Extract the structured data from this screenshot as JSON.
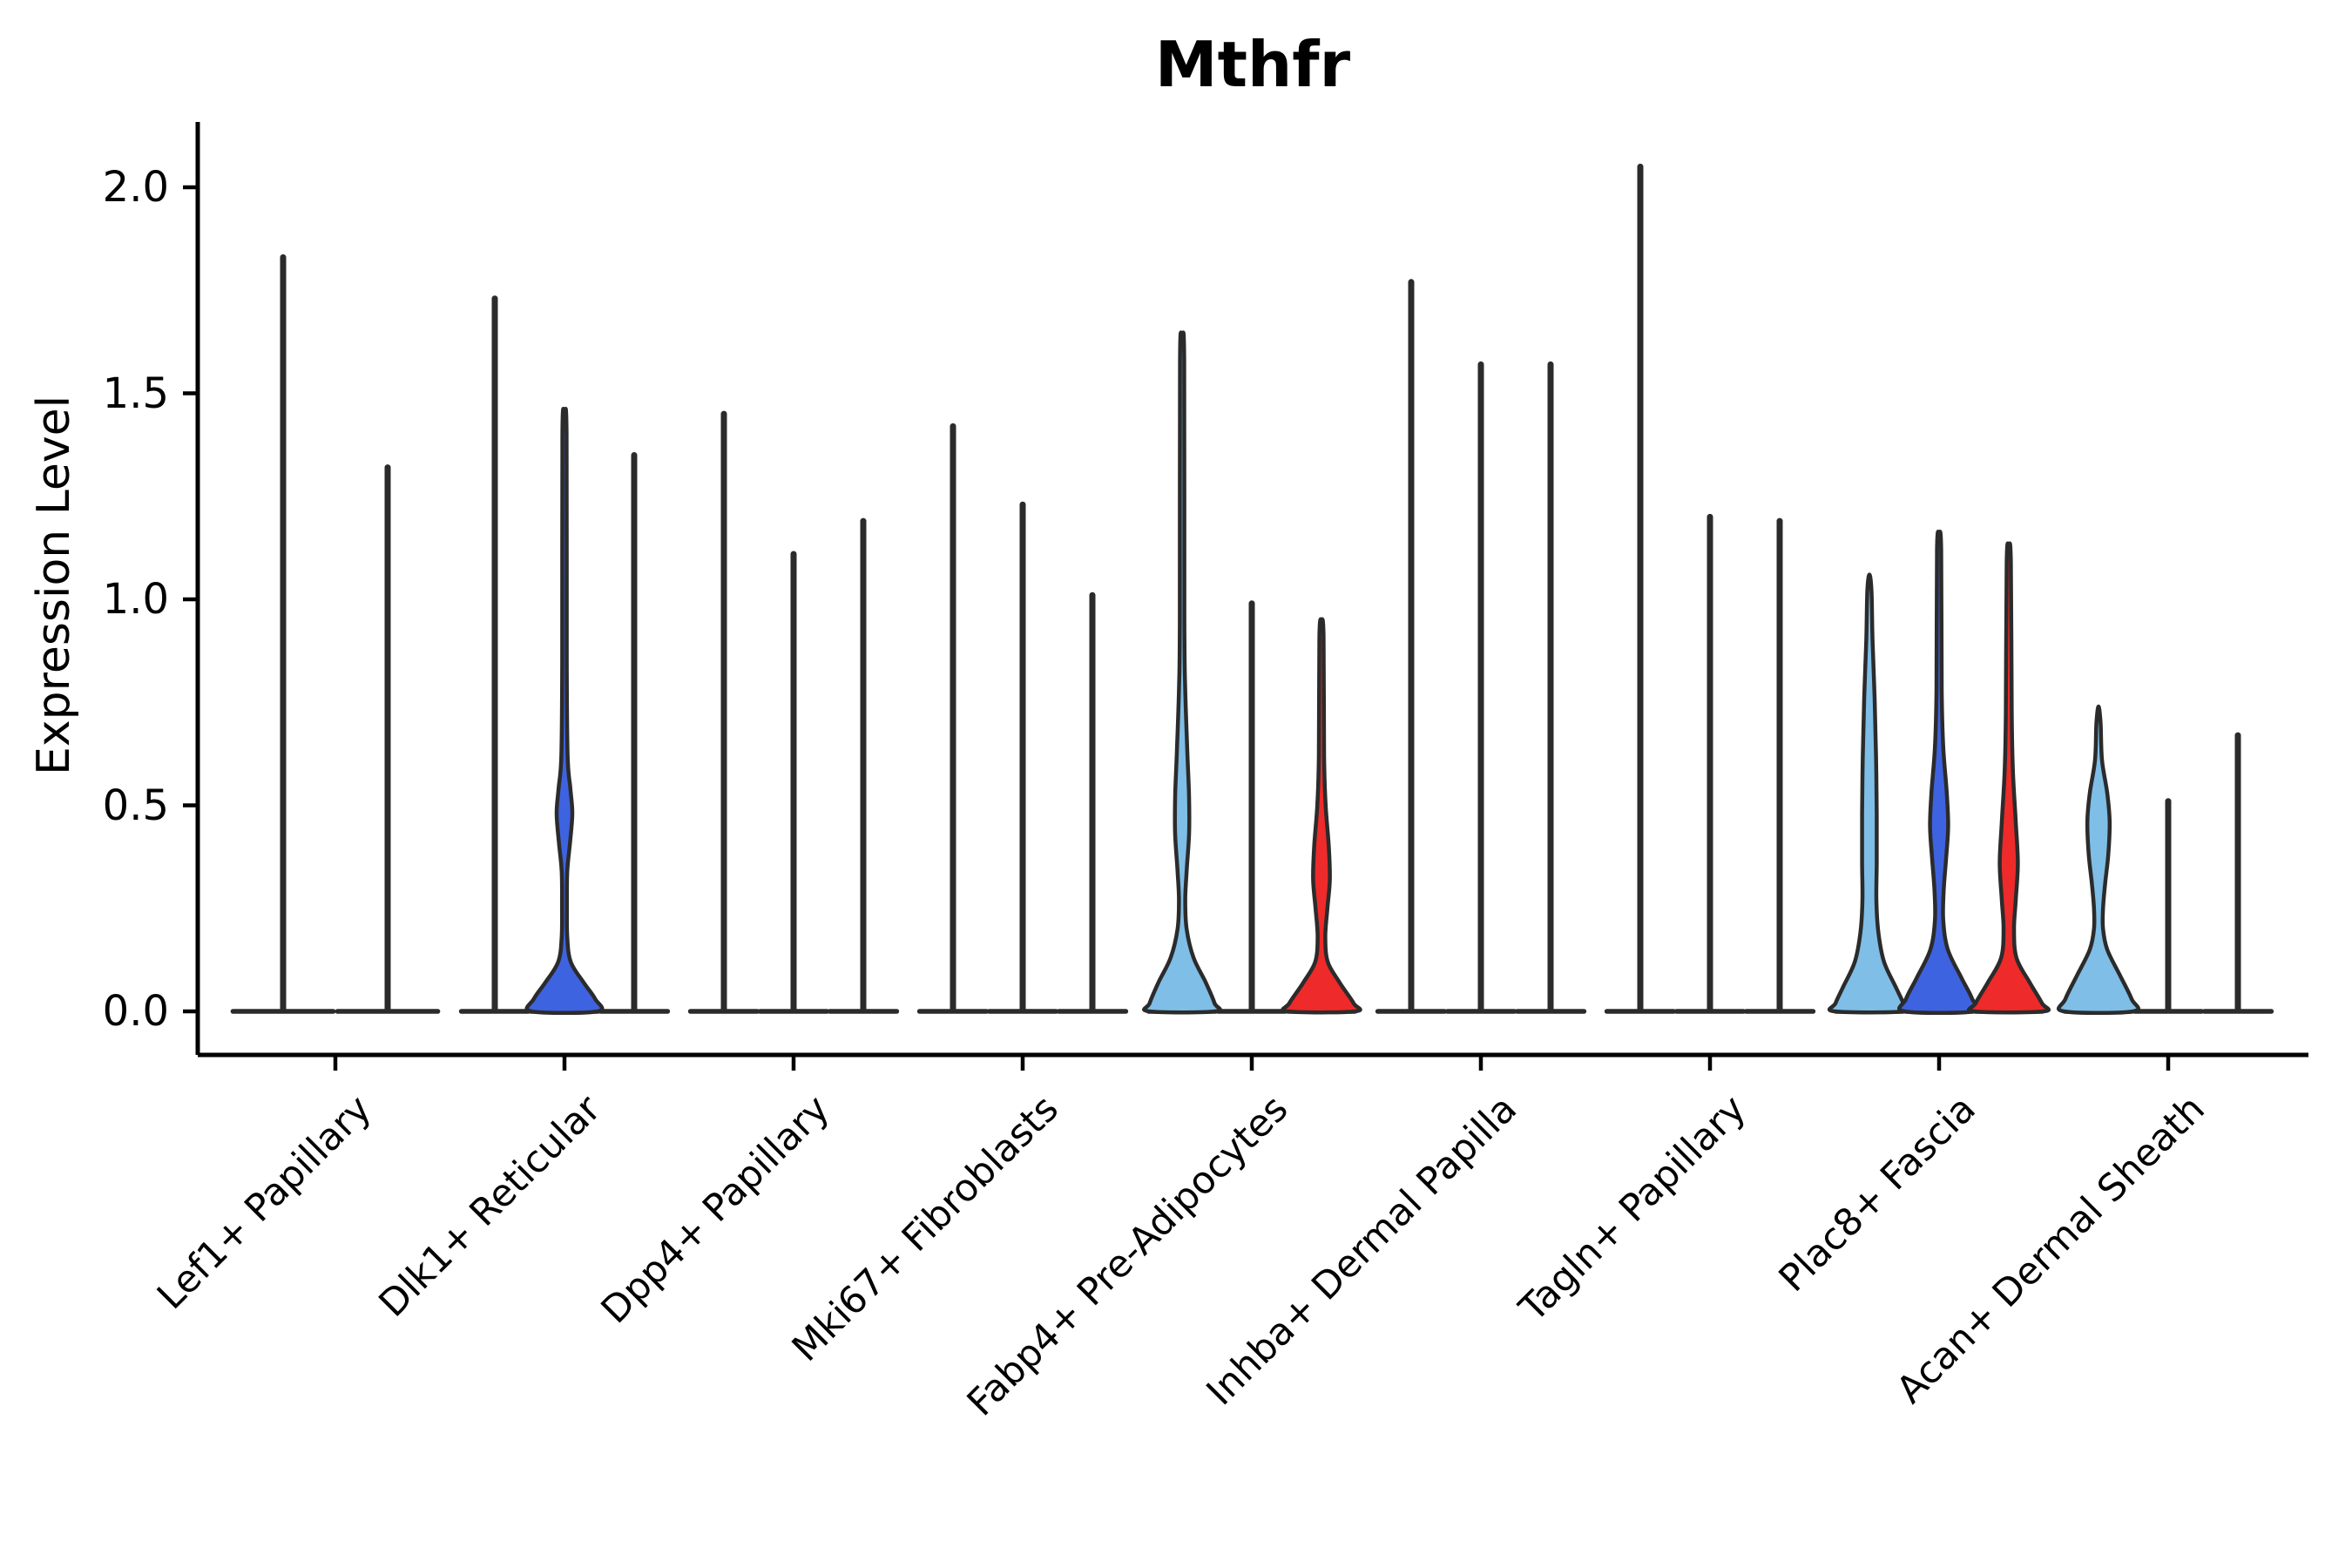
{
  "title": "Mthfr",
  "y_axis": {
    "label": "Expression Level",
    "tick_labels": [
      "0.0",
      "0.5",
      "1.0",
      "1.5",
      "2.0"
    ],
    "tick_values": [
      0.0,
      0.5,
      1.0,
      1.5,
      2.0
    ]
  },
  "x_axis": {
    "categories": [
      "Lef1+ Papillary",
      "Dlk1+ Reticular",
      "Dpp4+ Papillary",
      "Mki67+ Fibroblasts",
      "Fabp4+ Pre-Adipocytes",
      "Inhba+ Dermal Papilla",
      "Tagln+ Papillary",
      "Plac8+ Fascia",
      "Acan+ Dermal Sheath"
    ]
  },
  "chart_data": {
    "type": "violin",
    "title": "Mthfr",
    "xlabel": "",
    "ylabel": "Expression Level",
    "ylim": [
      -0.11,
      2.27
    ],
    "yticks": [
      0.0,
      0.5,
      1.0,
      1.5,
      2.0
    ],
    "ytick_labels": [
      "0.0",
      "0.5",
      "1.0",
      "1.5",
      "2.0"
    ],
    "grid": false,
    "legend": "none",
    "palette": {
      "lightblue": "#7FBEE6",
      "blue": "#3E63E0",
      "red": "#EE2A2A"
    },
    "outline_color": "#2b2b2b",
    "axis_color": "#000000",
    "groups": [
      {
        "label": "Lef1+ Papillary",
        "violins": [
          {
            "style": "spike",
            "max": 1.83
          },
          {
            "style": "spike",
            "max": 1.32
          }
        ]
      },
      {
        "label": "Dlk1+ Reticular",
        "violins": [
          {
            "style": "spike",
            "max": 1.73
          },
          {
            "style": "body",
            "max": 1.45,
            "color": "blue",
            "profile": [
              [
                1.45,
                0
              ],
              [
                1.4,
                0.06
              ],
              [
                0.85,
                0.065
              ],
              [
                0.62,
                0.09
              ],
              [
                0.54,
                0.17
              ],
              [
                0.48,
                0.225
              ],
              [
                0.41,
                0.16
              ],
              [
                0.34,
                0.08
              ],
              [
                0.26,
                0.07
              ],
              [
                0.18,
                0.08
              ],
              [
                0.12,
                0.18
              ],
              [
                0.07,
                0.55
              ],
              [
                0.03,
                0.88
              ],
              [
                0,
                0.95
              ]
            ]
          },
          {
            "style": "spike",
            "max": 1.35
          }
        ]
      },
      {
        "label": "Dpp4+ Papillary",
        "violins": [
          {
            "style": "spike",
            "max": 1.45
          },
          {
            "style": "spike",
            "max": 1.11
          },
          {
            "style": "spike",
            "max": 1.19
          }
        ]
      },
      {
        "label": "Mki67+ Fibroblasts",
        "violins": [
          {
            "style": "spike",
            "max": 1.42
          },
          {
            "style": "spike",
            "max": 1.23
          },
          {
            "style": "spike",
            "max": 1.01
          }
        ]
      },
      {
        "label": "Fabp4+ Pre-Adipocytes",
        "violins": [
          {
            "style": "body",
            "max": 1.63,
            "color": "lightblue",
            "profile": [
              [
                1.63,
                0
              ],
              [
                1.58,
                0.06
              ],
              [
                0.95,
                0.065
              ],
              [
                0.78,
                0.09
              ],
              [
                0.63,
                0.15
              ],
              [
                0.52,
                0.2
              ],
              [
                0.43,
                0.2
              ],
              [
                0.34,
                0.13
              ],
              [
                0.27,
                0.09
              ],
              [
                0.2,
                0.13
              ],
              [
                0.13,
                0.33
              ],
              [
                0.07,
                0.68
              ],
              [
                0.02,
                0.93
              ],
              [
                0,
                0.95
              ]
            ]
          },
          {
            "style": "spike",
            "max": 0.99
          },
          {
            "style": "body",
            "max": 0.95,
            "color": "red",
            "profile": [
              [
                0.95,
                0
              ],
              [
                0.91,
                0.06
              ],
              [
                0.62,
                0.075
              ],
              [
                0.5,
                0.12
              ],
              [
                0.4,
                0.21
              ],
              [
                0.32,
                0.24
              ],
              [
                0.25,
                0.17
              ],
              [
                0.18,
                0.11
              ],
              [
                0.12,
                0.18
              ],
              [
                0.07,
                0.52
              ],
              [
                0.02,
                0.92
              ],
              [
                0,
                0.97
              ]
            ]
          }
        ]
      },
      {
        "label": "Inhba+ Dermal Papilla",
        "violins": [
          {
            "style": "spike",
            "max": 1.77
          },
          {
            "style": "spike",
            "max": 1.57
          },
          {
            "style": "spike",
            "max": 1.57
          }
        ]
      },
      {
        "label": "Tagln+ Papillary",
        "violins": [
          {
            "style": "spike",
            "max": 2.05
          },
          {
            "style": "spike",
            "max": 1.2
          },
          {
            "style": "spike",
            "max": 1.19
          }
        ]
      },
      {
        "label": "Plac8+ Fascia",
        "violins": [
          {
            "style": "body",
            "max": 1.06,
            "color": "lightblue",
            "profile": [
              [
                1.06,
                0
              ],
              [
                1.02,
                0.06
              ],
              [
                0.9,
                0.09
              ],
              [
                0.76,
                0.15
              ],
              [
                0.62,
                0.19
              ],
              [
                0.48,
                0.21
              ],
              [
                0.36,
                0.21
              ],
              [
                0.27,
                0.2
              ],
              [
                0.19,
                0.26
              ],
              [
                0.12,
                0.42
              ],
              [
                0.06,
                0.75
              ],
              [
                0.02,
                0.97
              ],
              [
                0,
                1.0
              ]
            ]
          },
          {
            "style": "body",
            "max": 1.16,
            "color": "blue",
            "profile": [
              [
                1.16,
                0
              ],
              [
                1.12,
                0.06
              ],
              [
                0.78,
                0.075
              ],
              [
                0.64,
                0.12
              ],
              [
                0.53,
                0.22
              ],
              [
                0.45,
                0.26
              ],
              [
                0.37,
                0.2
              ],
              [
                0.29,
                0.13
              ],
              [
                0.22,
                0.12
              ],
              [
                0.15,
                0.25
              ],
              [
                0.08,
                0.65
              ],
              [
                0.03,
                0.95
              ],
              [
                0,
                1.0
              ]
            ]
          },
          {
            "style": "body",
            "max": 1.13,
            "color": "red",
            "profile": [
              [
                1.13,
                0
              ],
              [
                1.09,
                0.06
              ],
              [
                0.72,
                0.085
              ],
              [
                0.58,
                0.12
              ],
              [
                0.46,
                0.2
              ],
              [
                0.36,
                0.26
              ],
              [
                0.27,
                0.2
              ],
              [
                0.2,
                0.15
              ],
              [
                0.13,
                0.22
              ],
              [
                0.07,
                0.6
              ],
              [
                0.02,
                0.95
              ],
              [
                0,
                1.0
              ]
            ]
          }
        ]
      },
      {
        "label": "Acan+ Dermal Sheath",
        "violins": [
          {
            "style": "body",
            "max": 0.74,
            "color": "lightblue",
            "profile": [
              [
                0.74,
                0
              ],
              [
                0.7,
                0.06
              ],
              [
                0.61,
                0.1
              ],
              [
                0.53,
                0.25
              ],
              [
                0.46,
                0.32
              ],
              [
                0.38,
                0.28
              ],
              [
                0.31,
                0.19
              ],
              [
                0.25,
                0.13
              ],
              [
                0.2,
                0.13
              ],
              [
                0.15,
                0.25
              ],
              [
                0.09,
                0.6
              ],
              [
                0.03,
                0.95
              ],
              [
                0,
                1.0
              ]
            ]
          },
          {
            "style": "spike",
            "max": 0.51
          },
          {
            "style": "spike",
            "max": 0.67
          }
        ]
      }
    ]
  }
}
